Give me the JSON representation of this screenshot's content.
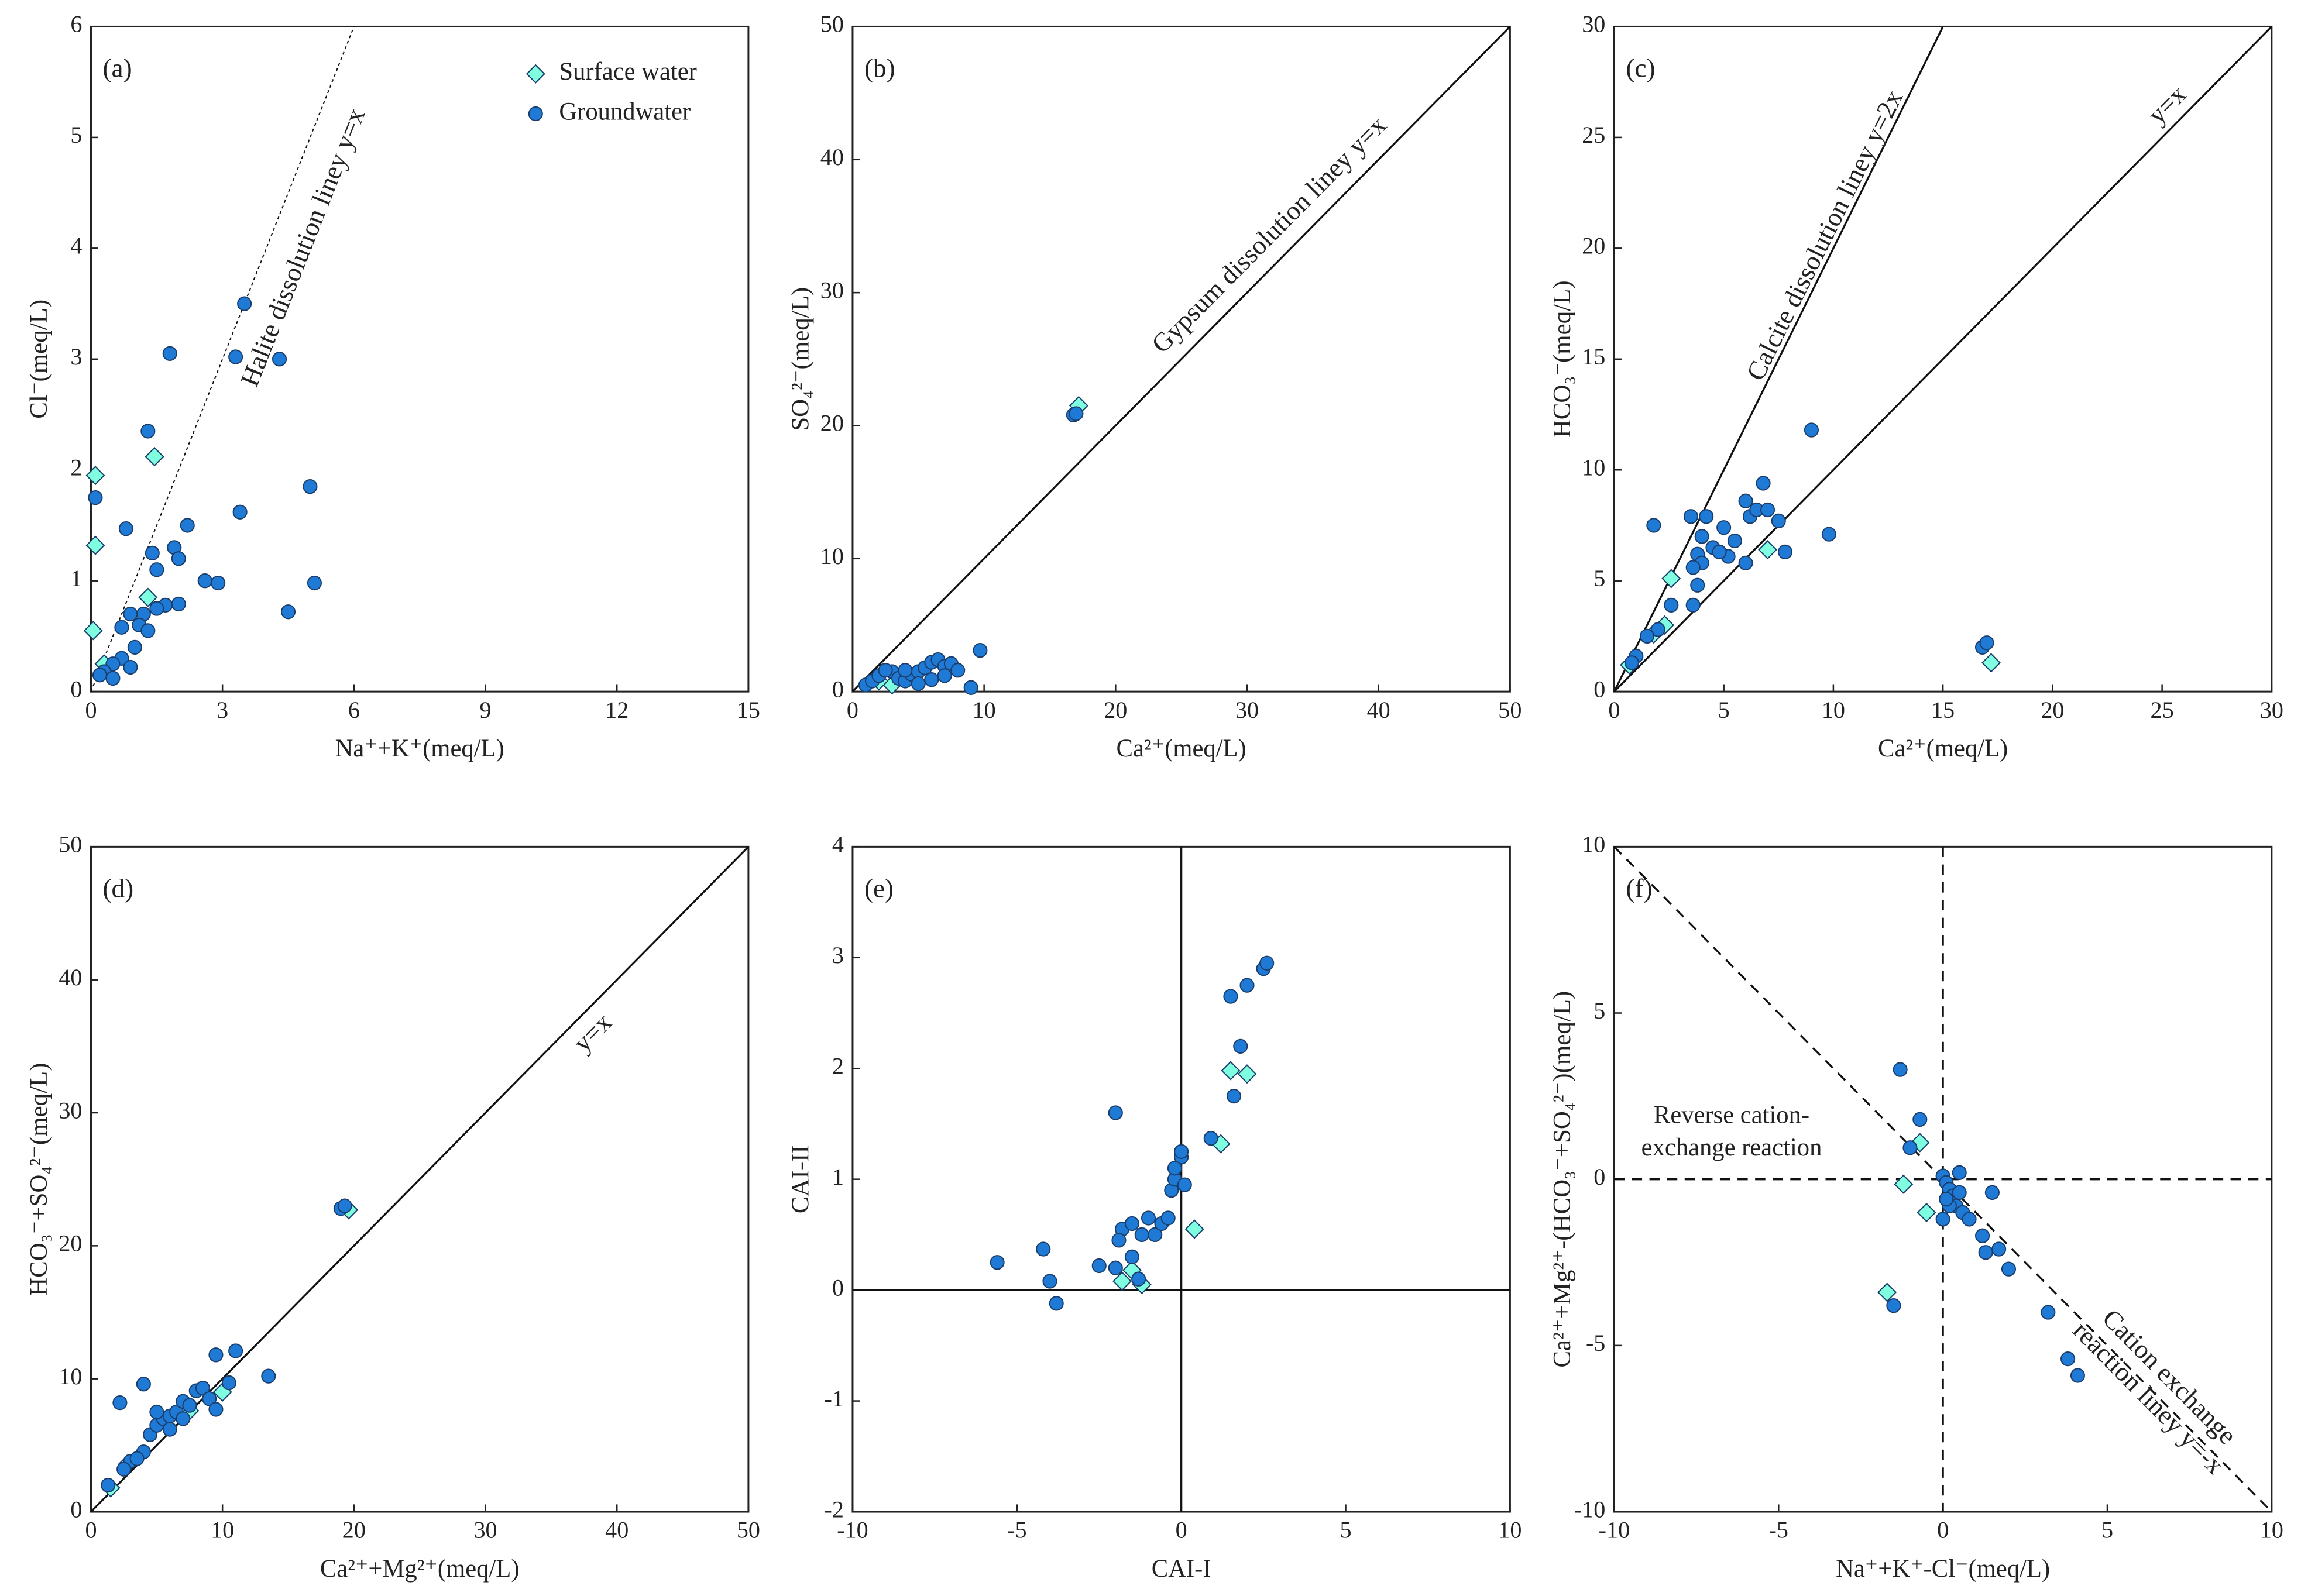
{
  "chart_data": [
    {
      "type": "scatter",
      "label": "(a)",
      "xlabel": "Na⁺+K⁺(meq/L)",
      "ylabel": "Cl⁻(meq/L)",
      "xlim": [
        0,
        15
      ],
      "ylim": [
        0,
        6
      ],
      "xticks": [
        0,
        3,
        6,
        9,
        12,
        15
      ],
      "yticks": [
        0,
        1,
        2,
        3,
        4,
        5,
        6
      ],
      "legend": "upper right",
      "ref_lines": [
        {
          "slope": 1,
          "intercept": 0,
          "dash": "dotted",
          "label": "Halite dissolution liney y=x"
        }
      ],
      "series": [
        {
          "name": "Surface water",
          "color": "#7fffe0",
          "marker": "diamond",
          "x": [
            0.1,
            0.1,
            1.45,
            0.05,
            1.3,
            0.3
          ],
          "y": [
            1.95,
            1.32,
            2.12,
            0.55,
            0.85,
            0.25
          ]
        },
        {
          "name": "Groundwater",
          "color": "#1f7ad6",
          "marker": "circle",
          "x": [
            0.1,
            3.5,
            1.8,
            3.3,
            4.3,
            1.3,
            5.0,
            3.4,
            0.8,
            2.2,
            1.4,
            1.5,
            1.9,
            2.0,
            2.6,
            2.9,
            5.1,
            4.5,
            1.7,
            2.0,
            1.2,
            0.9,
            1.1,
            1.3,
            0.7,
            1.0,
            0.7,
            0.5,
            0.3,
            0.2,
            0.5,
            0.9,
            1.5
          ],
          "y": [
            1.75,
            3.5,
            3.05,
            3.02,
            3.0,
            2.35,
            1.85,
            1.62,
            1.47,
            1.5,
            1.25,
            1.1,
            1.3,
            1.2,
            1.0,
            0.98,
            0.98,
            0.72,
            0.78,
            0.79,
            0.7,
            0.7,
            0.6,
            0.55,
            0.58,
            0.4,
            0.3,
            0.25,
            0.18,
            0.15,
            0.12,
            0.22,
            0.75
          ]
        }
      ]
    },
    {
      "type": "scatter",
      "label": "(b)",
      "xlabel": "Ca²⁺(meq/L)",
      "ylabel": "SO₄²⁻(meq/L)",
      "xlim": [
        0,
        50
      ],
      "ylim": [
        0,
        50
      ],
      "xticks": [
        0,
        10,
        20,
        30,
        40,
        50
      ],
      "yticks": [
        0,
        10,
        20,
        30,
        40,
        50
      ],
      "ref_lines": [
        {
          "slope": 1,
          "intercept": 0,
          "dash": "solid",
          "label": "Gypsum dissolution liney y=x"
        }
      ],
      "series": [
        {
          "color": "#7fffe0",
          "marker": "diamond",
          "x": [
            17.2,
            3,
            2
          ],
          "y": [
            21.5,
            0.5,
            0.8
          ]
        },
        {
          "color": "#1f7ad6",
          "marker": "circle",
          "x": [
            16.8,
            17,
            1,
            1.5,
            2,
            3,
            3.5,
            4,
            4.5,
            5,
            5.5,
            6,
            6.5,
            7,
            7.5,
            8,
            6,
            5,
            9,
            9.7,
            2.5,
            7,
            4
          ],
          "y": [
            20.8,
            20.9,
            0.5,
            0.8,
            1.2,
            1.5,
            1.0,
            0.8,
            1.3,
            1.5,
            1.8,
            2.2,
            2.4,
            1.9,
            2.1,
            1.6,
            0.9,
            0.6,
            0.3,
            3.1,
            1.6,
            1.2,
            1.6
          ]
        }
      ]
    },
    {
      "type": "scatter",
      "label": "(c)",
      "xlabel": "Ca²⁺(meq/L)",
      "ylabel": "HCO₃⁻(meq/L)",
      "xlim": [
        0,
        30
      ],
      "ylim": [
        0,
        30
      ],
      "xticks": [
        0,
        5,
        10,
        15,
        20,
        25,
        30
      ],
      "yticks": [
        0,
        5,
        10,
        15,
        20,
        25,
        30
      ],
      "ref_lines": [
        {
          "slope": 2,
          "intercept": 0,
          "dash": "solid",
          "label": "Calcite dissolution liney y=2x"
        },
        {
          "slope": 1,
          "intercept": 0,
          "dash": "solid",
          "label": "y=x"
        }
      ],
      "series": [
        {
          "color": "#7fffe0",
          "marker": "diamond",
          "x": [
            17.2,
            2.6,
            7.0,
            2.3,
            1.8,
            0.7
          ],
          "y": [
            1.3,
            5.1,
            6.4,
            3.0,
            2.6,
            1.2
          ]
        },
        {
          "color": "#1f7ad6",
          "marker": "circle",
          "x": [
            1.8,
            9,
            9.8,
            16.8,
            17,
            3.5,
            4.2,
            4,
            4.5,
            3.8,
            5,
            5.5,
            6,
            6.2,
            6.5,
            6.8,
            7,
            7.5,
            7.8,
            6,
            5.2,
            4.8,
            4,
            3.6,
            3.8,
            3.6,
            2.6,
            2.0,
            1.5,
            1.0,
            0.8
          ],
          "y": [
            7.5,
            11.8,
            7.1,
            2.0,
            2.2,
            7.9,
            7.9,
            7,
            6.5,
            6.2,
            7.4,
            6.8,
            8.6,
            7.9,
            8.2,
            9.4,
            8.2,
            7.7,
            6.3,
            5.8,
            6.1,
            6.3,
            5.8,
            5.6,
            4.8,
            3.9,
            3.9,
            2.8,
            2.5,
            1.6,
            1.3
          ]
        }
      ]
    },
    {
      "type": "scatter",
      "label": "(d)",
      "xlabel": "Ca²⁺+Mg²⁺(meq/L)",
      "ylabel": "HCO₃⁻+SO₄²⁻(meq/L)",
      "xlim": [
        0,
        50
      ],
      "ylim": [
        0,
        50
      ],
      "xticks": [
        0,
        10,
        20,
        30,
        40,
        50
      ],
      "yticks": [
        0,
        10,
        20,
        30,
        40,
        50
      ],
      "ref_lines": [
        {
          "slope": 1,
          "intercept": 0,
          "dash": "solid",
          "label": "y=x"
        }
      ],
      "series": [
        {
          "color": "#7fffe0",
          "marker": "diamond",
          "x": [
            19.6,
            10,
            2.8,
            7.5,
            1.5
          ],
          "y": [
            22.7,
            9,
            3.6,
            7.6,
            1.8
          ]
        },
        {
          "color": "#1f7ad6",
          "marker": "circle",
          "x": [
            19,
            19.3,
            2.2,
            4,
            9.5,
            11,
            13.5,
            1.3,
            3,
            4,
            4.5,
            5,
            5.5,
            6,
            6.5,
            7,
            7.5,
            8,
            8.5,
            9,
            9.5,
            10.5,
            5,
            6,
            7,
            3.5,
            2.5
          ],
          "y": [
            22.8,
            23,
            8.2,
            9.6,
            11.8,
            12.1,
            10.2,
            2,
            3.8,
            4.5,
            5.8,
            6.5,
            7,
            7.2,
            7.5,
            8.3,
            8,
            9.1,
            9.3,
            8.5,
            7.7,
            9.7,
            7.5,
            6.2,
            7,
            4,
            3.2
          ]
        }
      ]
    },
    {
      "type": "scatter",
      "label": "(e)",
      "xlabel": "CAI-I",
      "ylabel": "CAI-II",
      "xlim": [
        -10,
        10
      ],
      "ylim": [
        -2,
        4
      ],
      "xticks": [
        -10,
        -5,
        0,
        5,
        10
      ],
      "yticks": [
        -2,
        -1,
        0,
        1,
        2,
        3,
        4
      ],
      "ref_lines": [
        {
          "x": 0,
          "dash": "solid"
        },
        {
          "y": 0,
          "dash": "solid"
        }
      ],
      "series": [
        {
          "color": "#7fffe0",
          "marker": "diamond",
          "x": [
            1.5,
            2,
            1.2,
            0.4,
            -1.5,
            -1.2,
            -1.8
          ],
          "y": [
            1.98,
            1.95,
            1.32,
            0.55,
            0.18,
            0.05,
            0.08
          ]
        },
        {
          "color": "#1f7ad6",
          "marker": "circle",
          "x": [
            -5.6,
            -4.2,
            -4,
            -3.8,
            -2.5,
            -2,
            -1.8,
            -1.5,
            -1.2,
            -1,
            -0.8,
            -0.6,
            -0.4,
            -2,
            -0.3,
            -0.2,
            0,
            0,
            0.1,
            -0.2,
            0.9,
            1.5,
            1.8,
            2,
            2.5,
            2.6,
            1.6,
            -1.5,
            -1.3,
            -1.9
          ],
          "y": [
            0.25,
            0.37,
            0.08,
            -0.12,
            0.22,
            0.2,
            0.55,
            0.6,
            0.5,
            0.65,
            0.5,
            0.6,
            0.65,
            1.6,
            0.9,
            1.0,
            1.2,
            1.25,
            0.95,
            1.1,
            1.37,
            2.65,
            2.2,
            2.75,
            2.9,
            2.95,
            1.75,
            0.3,
            0.1,
            0.45
          ]
        }
      ]
    },
    {
      "type": "scatter",
      "label": "(f)",
      "xlabel": "Na⁺+K⁺-Cl⁻(meq/L)",
      "ylabel": "Ca²⁺+Mg²⁺-(HCO₃⁻+SO₄²⁻)(meq/L)",
      "xlim": [
        -10,
        10
      ],
      "ylim": [
        -10,
        10
      ],
      "xticks": [
        -10,
        -5,
        0,
        5,
        10
      ],
      "yticks": [
        -10,
        -5,
        0,
        5,
        10
      ],
      "ref_lines": [
        {
          "slope": -1,
          "intercept": 0,
          "dash": "dashed",
          "label": [
            "Cation exchange",
            "reaction liney y=-x"
          ]
        },
        {
          "x": 0,
          "dash": "dashed"
        },
        {
          "y": 0,
          "dash": "dashed"
        }
      ],
      "annotations": [
        "Reverse cation-",
        "exchange reaction"
      ],
      "series": [
        {
          "color": "#7fffe0",
          "marker": "diamond",
          "x": [
            -1.7,
            -0.7,
            -1.2,
            -0.5
          ],
          "y": [
            -3.4,
            1.1,
            -0.15,
            -1.0
          ]
        },
        {
          "color": "#1f7ad6",
          "marker": "circle",
          "x": [
            -1.3,
            -0.7,
            -1,
            0,
            0.1,
            0.2,
            0.5,
            0.3,
            0.4,
            0.6,
            0.8,
            0,
            0.2,
            1.2,
            1.5,
            1.3,
            1.7,
            2,
            3.2,
            3.8,
            4.1,
            -1.5,
            0.5,
            0.1
          ],
          "y": [
            3.3,
            1.8,
            0.95,
            0.1,
            -0.1,
            -0.3,
            0.2,
            -0.5,
            -0.8,
            -1.0,
            -1.2,
            -1.2,
            -0.8,
            -1.7,
            -0.4,
            -2.2,
            -2.1,
            -2.7,
            -4.0,
            -5.4,
            -5.9,
            -3.8,
            -0.4,
            -0.6
          ]
        }
      ]
    }
  ]
}
